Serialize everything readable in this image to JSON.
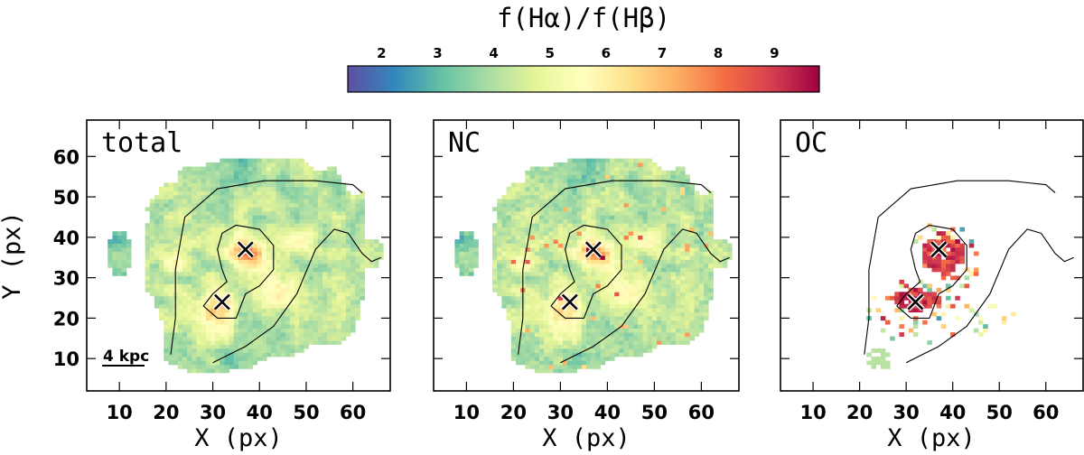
{
  "chart_data": {
    "type": "heatmap",
    "colorbar": {
      "title": "f(Hα)/f(Hβ)",
      "min": 1.4,
      "max": 9.8,
      "ticks": [
        2,
        3,
        4,
        5,
        6,
        7,
        8,
        9
      ],
      "colormap": "Spectral_r"
    },
    "xlabel": "X (px)",
    "ylabel": "Y (px)",
    "xlim": [
      3,
      68
    ],
    "ylim": [
      2,
      69
    ],
    "xticks": [
      10,
      20,
      30,
      40,
      50,
      60
    ],
    "yticks": [
      10,
      20,
      30,
      40,
      50,
      60
    ],
    "scale_bar": {
      "label": "4 kpc"
    },
    "markers": [
      {
        "x": 37,
        "y": 37,
        "symbol": "x"
      },
      {
        "x": 32,
        "y": 24,
        "symbol": "x"
      }
    ],
    "panels": [
      {
        "id": "total",
        "label": "total",
        "inner_scale": 1.0
      },
      {
        "id": "nc",
        "label": "NC",
        "inner_scale": 0.9
      },
      {
        "id": "oc",
        "label": "OC",
        "inner_scale": 1.0
      }
    ],
    "contours": [
      [
        [
          21,
          11
        ],
        [
          22,
          20
        ],
        [
          22,
          32
        ],
        [
          24,
          45
        ],
        [
          31,
          52
        ],
        [
          41,
          54
        ],
        [
          52,
          54
        ],
        [
          60,
          53
        ],
        [
          62,
          51
        ]
      ],
      [
        [
          30,
          9
        ],
        [
          37,
          13
        ],
        [
          43,
          18
        ],
        [
          48,
          26
        ],
        [
          52,
          37
        ],
        [
          56,
          42
        ],
        [
          59,
          41
        ],
        [
          62,
          36
        ],
        [
          64,
          34
        ],
        [
          66,
          35
        ]
      ],
      [
        [
          31,
          20
        ],
        [
          35,
          20
        ],
        [
          36,
          23
        ],
        [
          37,
          26
        ],
        [
          40,
          28
        ],
        [
          43,
          32
        ],
        [
          43,
          38
        ],
        [
          40,
          42
        ],
        [
          35,
          43
        ],
        [
          32,
          41
        ],
        [
          31,
          37
        ],
        [
          32,
          32
        ],
        [
          33,
          29
        ],
        [
          30,
          26
        ],
        [
          28,
          23
        ],
        [
          31,
          20
        ]
      ]
    ]
  }
}
